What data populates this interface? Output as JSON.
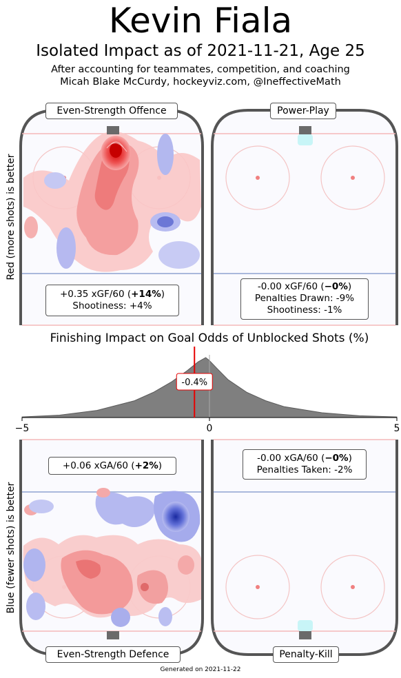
{
  "header": {
    "title": "Kevin Fiala",
    "subtitle": "Isolated Impact as of 2021-11-21, Age 25",
    "note1": "After accounting for teammates, competition, and coaching",
    "note2": "Micah Blake McCurdy, hockeyviz.com, @IneffectiveMath"
  },
  "panels": {
    "ev_offence": {
      "label": "Even-Strength Offence",
      "stat_plain": "+0.35 xGF/60 (",
      "stat_bold": "+14%",
      "stat_close": ")",
      "line2": "Shootiness: +4%"
    },
    "pp": {
      "label": "Power-Play",
      "stat_plain": "-0.00 xGF/60 (",
      "stat_bold": "−0%",
      "stat_close": ")",
      "line2": "Penalties Drawn: -9%",
      "line3": "Shootiness: -1%"
    },
    "ev_defence": {
      "label": "Even-Strength Defence",
      "stat_plain": "+0.06 xGA/60 (",
      "stat_bold": "+2%",
      "stat_close": ")"
    },
    "pk": {
      "label": "Penalty-Kill",
      "stat_plain": "-0.00 xGA/60 (",
      "stat_bold": "−0%",
      "stat_close": ")",
      "line2": "Penalties Taken: -2%"
    }
  },
  "axis_labels": {
    "top": "Red (more shots) is better",
    "bottom": "Blue (fewer shots) is better"
  },
  "chart_data": {
    "type": "area",
    "title": "Finishing Impact on Goal Odds of Unblocked Shots (%)",
    "xlim": [
      -5,
      5
    ],
    "xticks": [
      -5,
      0,
      5
    ],
    "x": [
      -5,
      -4,
      -3,
      -2,
      -1.5,
      -1,
      -0.6,
      -0.3,
      -0.1,
      0,
      0.2,
      0.5,
      1,
      1.5,
      2,
      3,
      4,
      5
    ],
    "values": [
      0.01,
      0.04,
      0.12,
      0.28,
      0.42,
      0.6,
      0.78,
      0.93,
      1.0,
      0.95,
      0.82,
      0.63,
      0.42,
      0.28,
      0.18,
      0.08,
      0.03,
      0.01
    ],
    "marker_value": -0.4,
    "marker_label": "-0.4%",
    "grid": false
  },
  "footer": "Generated on 2021-11-22",
  "colors": {
    "red_line": "#e60000",
    "density_fill": "#7f7f7f",
    "rink_border": "#555555",
    "blue_line": "#a9b8dc",
    "red_rink": "#f4b8b8",
    "goal_crease": "#c8f5f7",
    "goal": "#6a6a6a"
  }
}
